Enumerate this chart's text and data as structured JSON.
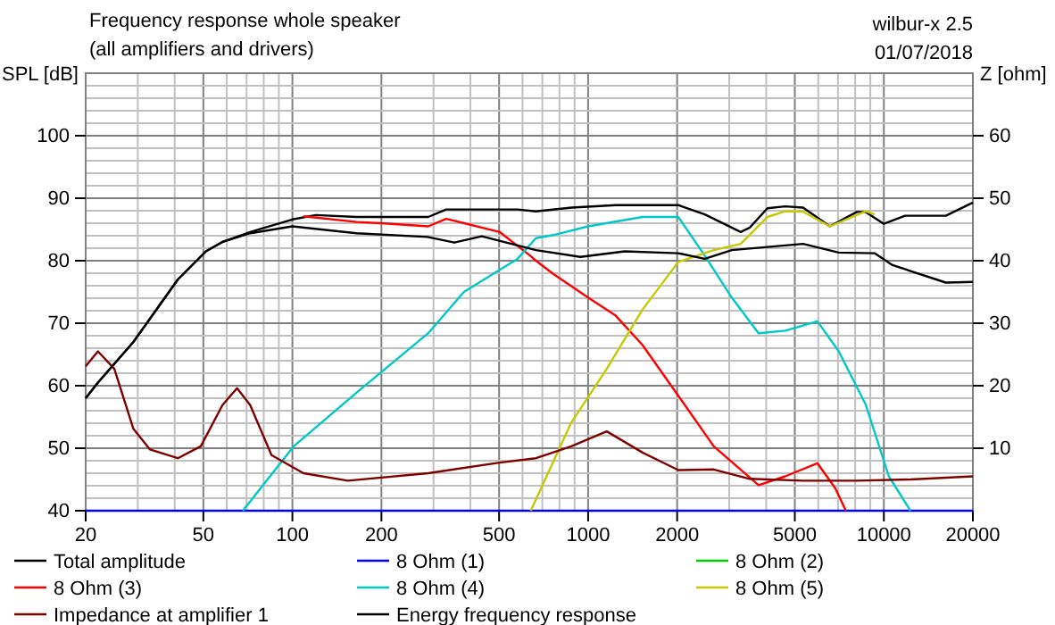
{
  "chart_data": {
    "type": "line",
    "title": "Frequency response whole speaker",
    "subtitle": "(all amplifiers and drivers)",
    "ylabel": "SPL [dB]",
    "y2label": "Z [ohm]",
    "annotations": [
      "wilbur-x 2.5",
      "01/07/2018"
    ],
    "log": "x",
    "xlim": [
      20,
      20000
    ],
    "xticks": [
      20,
      50,
      100,
      200,
      500,
      1000,
      2000,
      5000,
      10000,
      20000
    ],
    "ylim": [
      40,
      110
    ],
    "yticks": [
      40,
      50,
      60,
      70,
      80,
      90,
      100
    ],
    "y2lim": [
      0,
      70
    ],
    "y2ticks": [
      10,
      20,
      30,
      40,
      50,
      60
    ],
    "grid": true,
    "legend": "bottom",
    "line_style": "solid",
    "marker": "none",
    "series": [
      {
        "name": "Total amplitude",
        "color": "#000000",
        "x": [
          20,
          22,
          29,
          41,
          51,
          58,
          72,
          100,
          120,
          165,
          200,
          288,
          331,
          577,
          666,
          880,
          1240,
          1330,
          2018,
          2480,
          3280,
          3520,
          4040,
          4640,
          5330,
          6570,
          8100,
          8680,
          10000,
          11800,
          16200,
          20000
        ],
        "values": [
          58,
          60.5,
          67,
          77,
          81.5,
          83,
          84.6,
          86.6,
          87.3,
          87,
          87,
          87,
          88.2,
          88.2,
          87.9,
          88.5,
          88.9,
          88.9,
          88.9,
          87.4,
          84.6,
          85.3,
          88.4,
          88.7,
          88.5,
          85.5,
          87.8,
          87.8,
          85.9,
          87.2,
          87.2,
          89.3
        ]
      },
      {
        "name": "8 Ohm (1)",
        "color": "#0000ff",
        "x": [
          20,
          20000
        ],
        "values": [
          40,
          40
        ]
      },
      {
        "name": "8 Ohm (2)",
        "color": "#00cc00"
      },
      {
        "name": "8 Ohm (3)",
        "color": "#ff0000",
        "x": [
          109,
          165,
          200,
          288,
          331,
          502,
          637,
          666,
          762,
          1000,
          1240,
          1528,
          2018,
          2660,
          3770,
          4640,
          5960,
          6850,
          7440
        ],
        "values": [
          87.1,
          86.2,
          86,
          85.5,
          86.7,
          84.6,
          80.8,
          80,
          77.9,
          74.1,
          71.2,
          66.5,
          58.4,
          50.3,
          44.1,
          45.5,
          47.6,
          43.6,
          40
        ]
      },
      {
        "name": "8 Ohm (4)",
        "color": "#00c8c8",
        "x": [
          68,
          101,
          165,
          288,
          380,
          577,
          666,
          762,
          1000,
          1528,
          2018,
          2480,
          3060,
          3770,
          4640,
          5960,
          7040,
          8680,
          10400,
          12300
        ],
        "values": [
          40,
          50.3,
          58.9,
          68.4,
          75,
          80.3,
          83.6,
          84.1,
          85.5,
          87,
          87,
          80.8,
          74.1,
          68.4,
          68.8,
          70.3,
          65.5,
          57,
          45.5,
          40
        ]
      },
      {
        "name": "8 Ohm (5)",
        "color": "#c8c800",
        "x": [
          640,
          877,
          1156,
          1528,
          2018,
          2660,
          3280,
          4040,
          4640,
          5300,
          6570,
          8680,
          9300
        ],
        "values": [
          40,
          54.1,
          62.7,
          72.2,
          79.8,
          81.7,
          82.7,
          87,
          87.9,
          87.9,
          85.5,
          87.9,
          87.4
        ]
      },
      {
        "name": "Impedance at amplifier 1",
        "color": "#800000",
        "axis": "y2",
        "x": [
          20,
          22,
          25,
          29,
          33,
          41,
          49,
          58,
          65,
          72,
          85,
          109,
          154,
          288,
          502,
          666,
          877,
          1156,
          1528,
          2018,
          2660,
          3520,
          5330,
          8100,
          12300,
          20000
        ],
        "values": [
          23.1,
          25.5,
          22.7,
          13.1,
          9.8,
          8.4,
          10.3,
          16.9,
          19.6,
          16.9,
          8.9,
          6,
          4.8,
          6,
          7.7,
          8.4,
          10.3,
          12.7,
          9.3,
          6.5,
          6.6,
          5.1,
          4.8,
          4.8,
          5,
          5.5
        ]
      },
      {
        "name": "Energy frequency response",
        "color": "#000000",
        "x": [
          20,
          22,
          29,
          41,
          51,
          58,
          72,
          100,
          165,
          286,
          353,
          437,
          666,
          942,
          1330,
          2018,
          2480,
          3060,
          5330,
          7040,
          9300,
          10700,
          16200,
          20000
        ],
        "values": [
          58,
          60.5,
          67,
          77,
          81.5,
          83,
          84.4,
          85.5,
          84.4,
          83.8,
          82.9,
          83.9,
          81.7,
          80.6,
          81.5,
          81.2,
          80.3,
          81.7,
          82.7,
          81.3,
          81.2,
          79.3,
          76.5,
          76.6
        ]
      }
    ]
  }
}
